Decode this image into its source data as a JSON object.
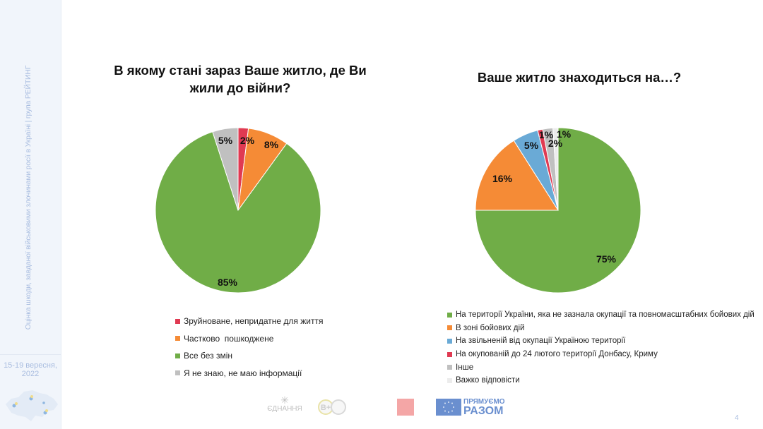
{
  "sidebar": {
    "title": "Оцінка шкоди, завданої військовими злочинами росії в Україні | група РЕЙТИНГ",
    "date_line1": "15-19 вересня,",
    "date_line2": "2022"
  },
  "footer": {
    "page_number": "4",
    "logos": [
      "ЄДНАННЯ",
      "В+",
      "ПРЯМУЄМО",
      "РАЗОМ"
    ]
  },
  "colors": {
    "red": "#e03a52",
    "orange": "#f58b36",
    "green": "#70ad47",
    "gray": "#c0c0c0",
    "blue": "#6aaad6",
    "lightgray": "#ececec"
  },
  "chart_data": [
    {
      "type": "pie",
      "title": "В якому стані зараз Ваше житло, де Ви жили до війни?",
      "legend_position": "bottom",
      "start": "top",
      "direction": "clockwise",
      "categories": [
        "Зруйноване, непридатне для життя",
        "Частково  пошкоджене",
        "Все без змін",
        "Я не знаю, не маю інформації"
      ],
      "values": [
        2,
        8,
        85,
        5
      ],
      "labels": [
        "2%",
        "8%",
        "85%",
        "5%"
      ],
      "colors": [
        "#e03a52",
        "#f58b36",
        "#70ad47",
        "#c0c0c0"
      ]
    },
    {
      "type": "pie",
      "title": "Ваше житло знаходиться на…?",
      "legend_position": "bottom",
      "start": "top",
      "direction": "clockwise",
      "categories": [
        "На території України, яка не зазнала окупації та повномасштабних бойових дій",
        "В зоні бойових дій",
        "На звільненій від окупації Україною території",
        "На окупованій до 24 лютого території Донбасу, Криму",
        "Інше",
        "Важко відповісти"
      ],
      "values": [
        75,
        16,
        5,
        1,
        2,
        1
      ],
      "labels": [
        "75%",
        "16%",
        "5%",
        "1%",
        "2%",
        "1%"
      ],
      "colors": [
        "#70ad47",
        "#f58b36",
        "#6aaad6",
        "#e03a52",
        "#c0c0c0",
        "#ececec"
      ]
    }
  ]
}
